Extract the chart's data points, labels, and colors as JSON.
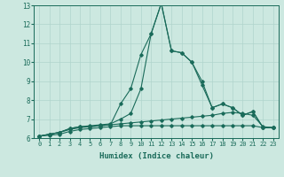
{
  "xlabel": "Humidex (Indice chaleur)",
  "xlim": [
    -0.5,
    23.5
  ],
  "ylim": [
    6,
    13
  ],
  "yticks": [
    6,
    7,
    8,
    9,
    10,
    11,
    12,
    13
  ],
  "xticks": [
    0,
    1,
    2,
    3,
    4,
    5,
    6,
    7,
    8,
    9,
    10,
    11,
    12,
    13,
    14,
    15,
    16,
    17,
    18,
    19,
    20,
    21,
    22,
    23
  ],
  "bg_color": "#cce8e0",
  "grid_color": "#b0d4cc",
  "line_color": "#1a6b5a",
  "line1": [
    6.1,
    6.2,
    6.3,
    6.5,
    6.6,
    6.6,
    6.65,
    6.7,
    7.8,
    8.6,
    10.4,
    11.5,
    13.1,
    10.6,
    10.5,
    10.0,
    8.8,
    7.6,
    7.8,
    7.6,
    7.2,
    7.4,
    6.55,
    6.55
  ],
  "line2": [
    6.1,
    6.2,
    6.3,
    6.5,
    6.6,
    6.65,
    6.7,
    6.75,
    7.0,
    7.3,
    8.6,
    11.5,
    13.1,
    10.6,
    10.5,
    10.0,
    9.0,
    7.6,
    7.8,
    7.6,
    7.2,
    7.4,
    6.55,
    6.55
  ],
  "line3": [
    6.1,
    6.2,
    6.3,
    6.45,
    6.55,
    6.6,
    6.65,
    6.7,
    6.75,
    6.8,
    6.85,
    6.9,
    6.95,
    7.0,
    7.05,
    7.1,
    7.15,
    7.2,
    7.3,
    7.35,
    7.3,
    7.2,
    6.6,
    6.55
  ],
  "line4": [
    6.1,
    6.15,
    6.2,
    6.35,
    6.45,
    6.5,
    6.55,
    6.6,
    6.65,
    6.65,
    6.65,
    6.65,
    6.65,
    6.65,
    6.65,
    6.65,
    6.65,
    6.65,
    6.65,
    6.65,
    6.65,
    6.65,
    6.55,
    6.55
  ]
}
